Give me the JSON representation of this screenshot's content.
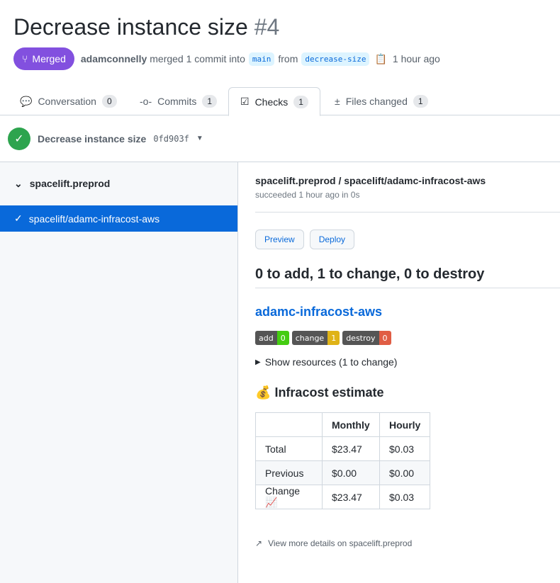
{
  "pr": {
    "title": "Decrease instance size",
    "number": "#4",
    "status": "Merged",
    "author": "adamconnelly",
    "action": "merged 1 commit into",
    "base": "main",
    "from": "from",
    "head": "decrease-size",
    "time": "1 hour ago"
  },
  "tabs": [
    {
      "label": "Conversation",
      "count": "0"
    },
    {
      "label": "Commits",
      "count": "1"
    },
    {
      "label": "Checks",
      "count": "1"
    },
    {
      "label": "Files changed",
      "count": "1"
    }
  ],
  "checks_header": {
    "name": "Decrease instance size",
    "sha": "0fd903f"
  },
  "sidebar": {
    "suite": "spacelift.preprod",
    "run": "spacelift/adamc-infracost-aws"
  },
  "check": {
    "title": "spacelift.preprod / spacelift/adamc-infracost-aws",
    "subtitle": "succeeded 1 hour ago in 0s",
    "preview": "Preview",
    "deploy": "Deploy",
    "plan_summary": "0 to add, 1 to change, 0 to destroy",
    "stack": "adamc-infracost-aws",
    "badges": [
      {
        "label": "add",
        "value": "0",
        "color": "#4c1"
      },
      {
        "label": "change",
        "value": "1",
        "color": "#dfb317"
      },
      {
        "label": "destroy",
        "value": "0",
        "color": "#e05d44"
      }
    ],
    "show_resources": "Show resources (1 to change)",
    "estimate_title": "Infracost estimate",
    "table": {
      "headers": [
        "",
        "Monthly",
        "Hourly"
      ],
      "rows": [
        [
          "Total",
          "$23.47",
          "$0.03"
        ],
        [
          "Previous",
          "$0.00",
          "$0.00"
        ],
        [
          "Change 📈",
          "$23.47",
          "$0.03"
        ]
      ]
    },
    "more": "View more details on spacelift.preprod"
  }
}
